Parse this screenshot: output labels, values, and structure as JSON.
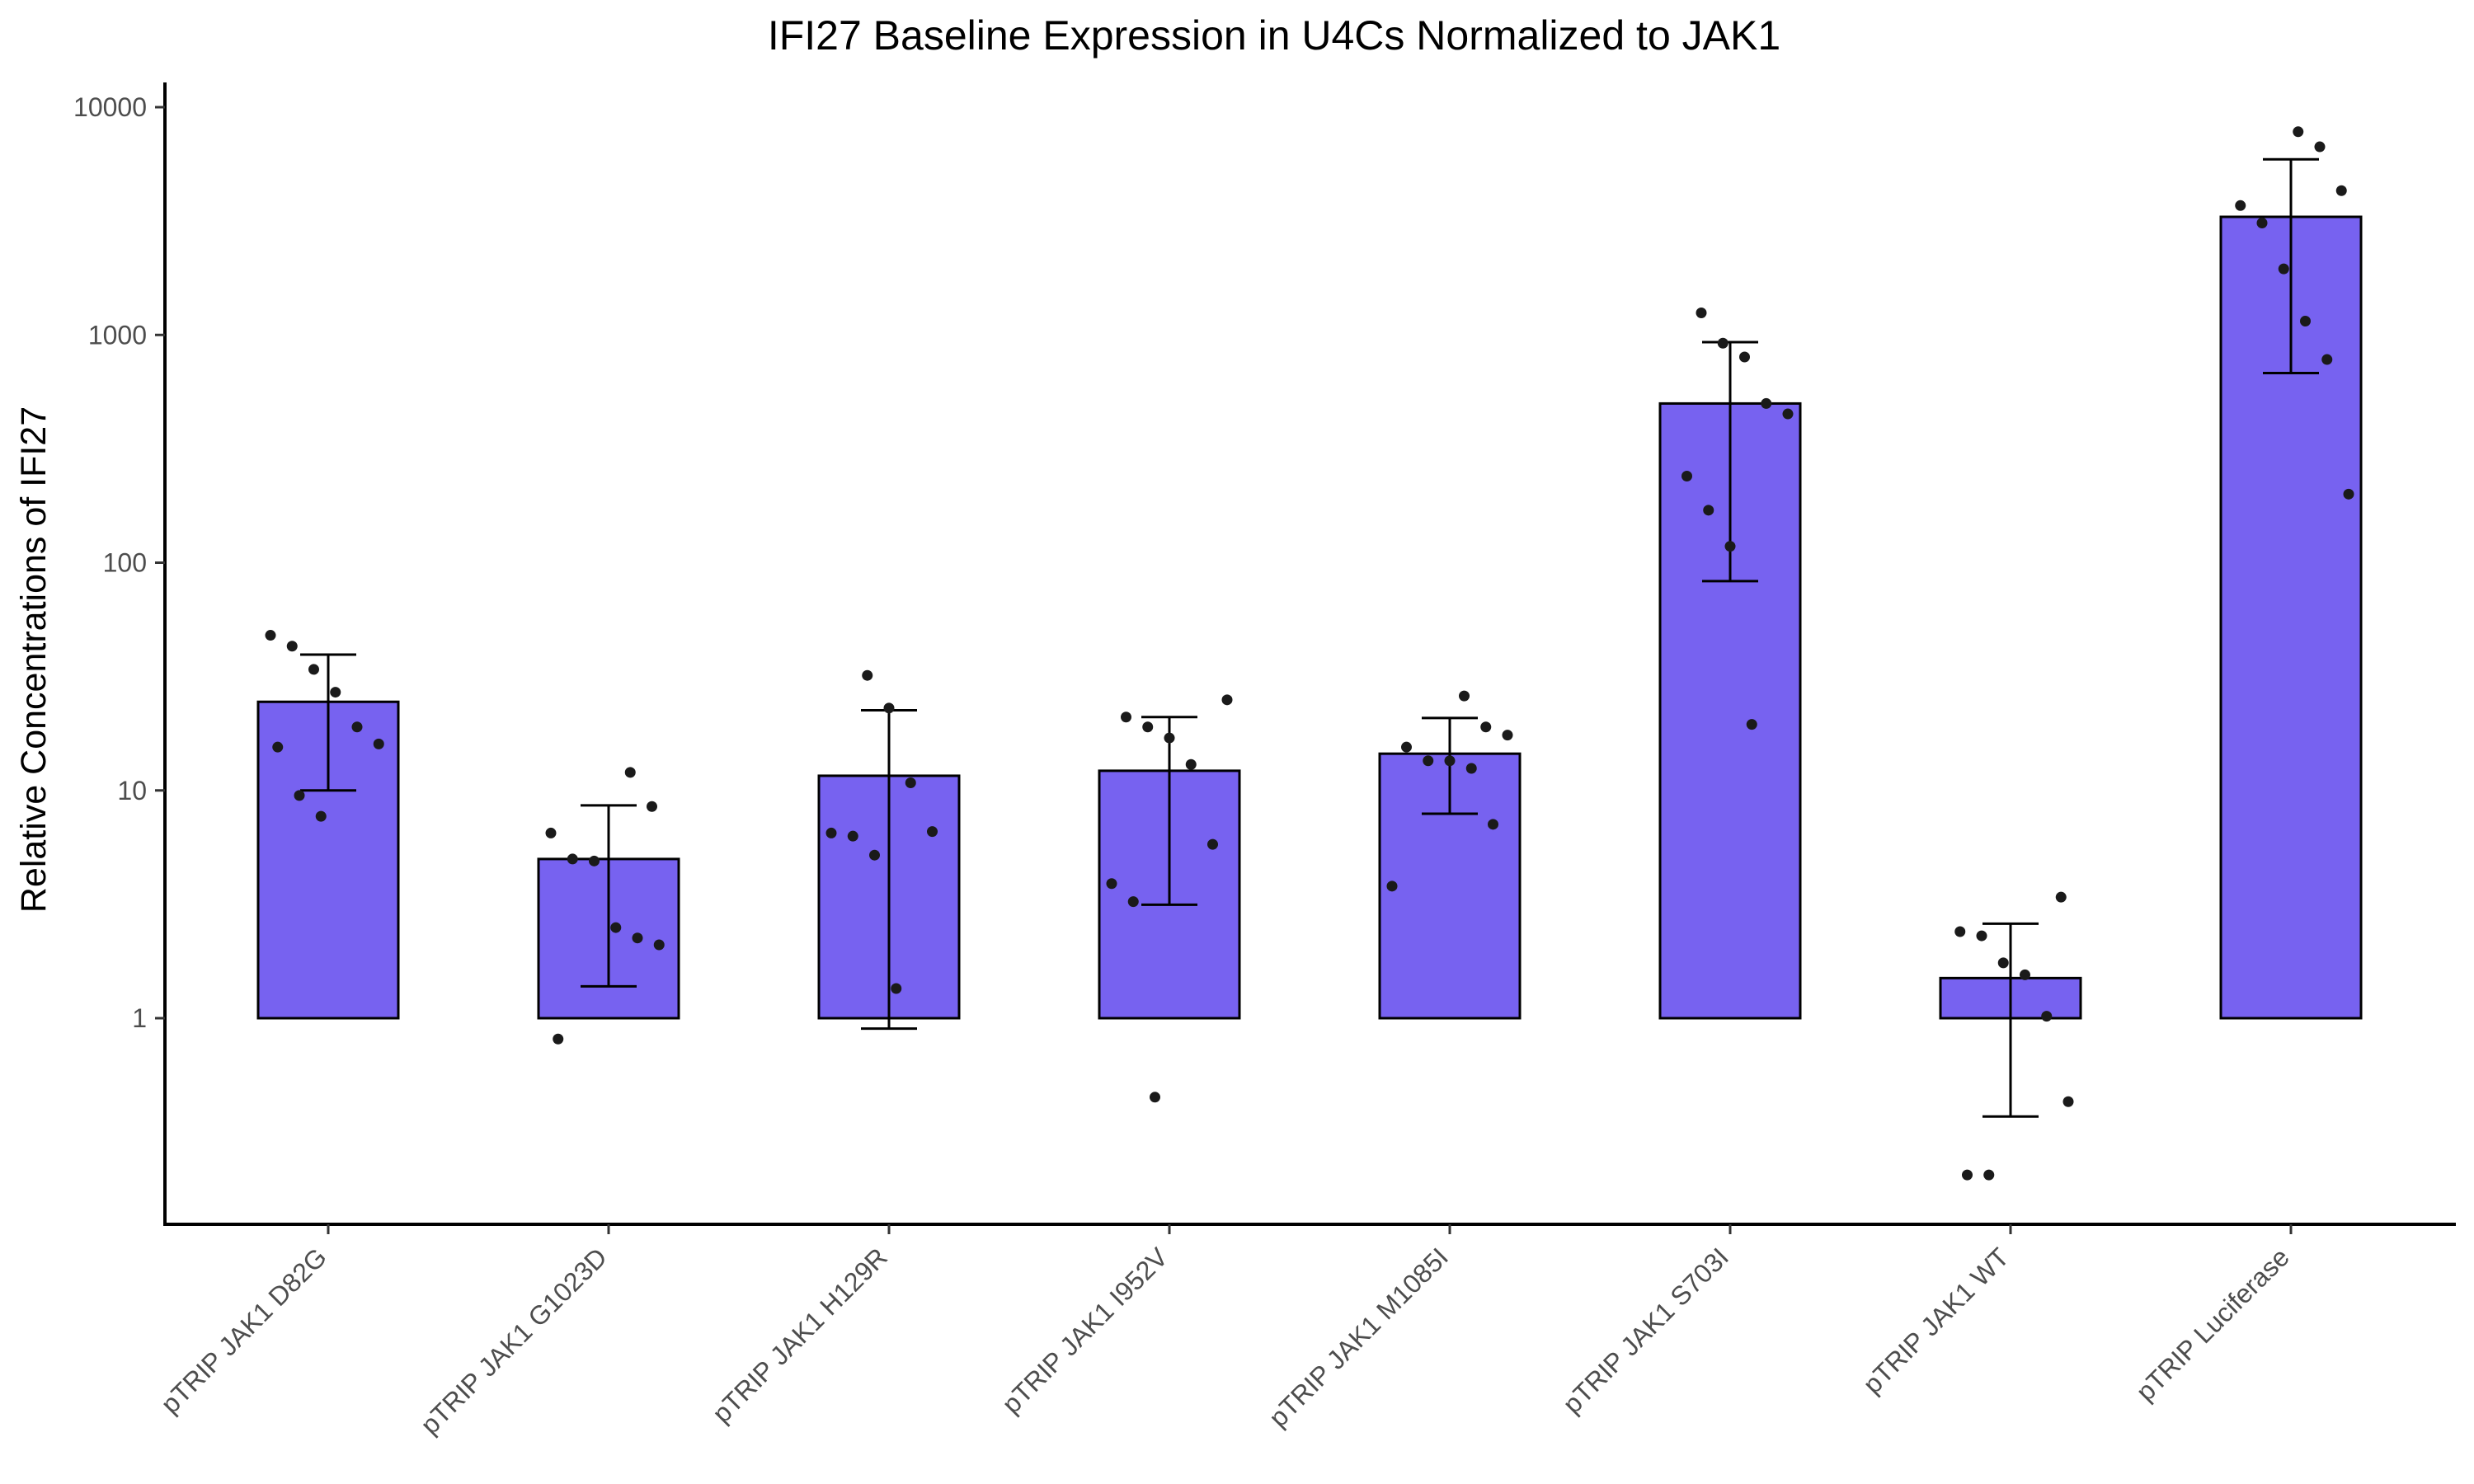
{
  "chart_data": {
    "type": "bar",
    "title": "IFI27 Baseline Expression in U4Cs Normalized to JAK1",
    "xlabel": "",
    "ylabel": "Relative Concentrations of IFI27",
    "y_scale": "log10",
    "ylim": [
      0.12,
      14500
    ],
    "y_ticks": [
      1,
      10,
      100,
      1000,
      10000
    ],
    "y_tick_labels": [
      "1",
      "10",
      "100",
      "1000",
      "10000"
    ],
    "bar_baseline": 1,
    "grid": false,
    "legend": "none",
    "colors": {
      "bar_fill": "#7762F0",
      "bar_stroke": "#000000",
      "point": "#1a1a1a",
      "errorbar": "#000000"
    },
    "categories": [
      "pTRIP JAK1 D82G",
      "pTRIP JAK1 G1023D",
      "pTRIP JAK1 H129R",
      "pTRIP JAK1 I952V",
      "pTRIP JAK1 M1085I",
      "pTRIP JAK1 S703I",
      "pTRIP JAK1 WT",
      "pTRIP Luciferase"
    ],
    "values": [
      24.5,
      5.0,
      11.6,
      12.2,
      14.5,
      500,
      1.5,
      3300
    ],
    "error_low": [
      10,
      1.38,
      0.9,
      3.15,
      7.9,
      83,
      0.37,
      680
    ],
    "error_high": [
      39.5,
      8.6,
      22.5,
      21,
      20.8,
      930,
      2.6,
      5900
    ],
    "points": [
      [
        48,
        43,
        34,
        27,
        19,
        16,
        15.5,
        9.5,
        7.7
      ],
      [
        12,
        8.5,
        6.5,
        5.0,
        4.9,
        2.5,
        2.25,
        2.1,
        0.81
      ],
      [
        32,
        23,
        10.8,
        6.6,
        6.5,
        6.3,
        5.2,
        1.35
      ],
      [
        25,
        21,
        19,
        17,
        13,
        5.8,
        3.9,
        3.25,
        0.45
      ],
      [
        26,
        19,
        17.5,
        15.5,
        13.5,
        13.5,
        12.5,
        7.1,
        3.8
      ],
      [
        1250,
        920,
        800,
        500,
        450,
        240,
        170,
        118,
        19.5
      ],
      [
        3.4,
        2.4,
        2.3,
        1.75,
        1.55,
        1.02,
        0.43,
        0.205,
        0.205
      ],
      [
        7800,
        6700,
        4300,
        3700,
        3100,
        1950,
        1150,
        780,
        200
      ]
    ]
  }
}
